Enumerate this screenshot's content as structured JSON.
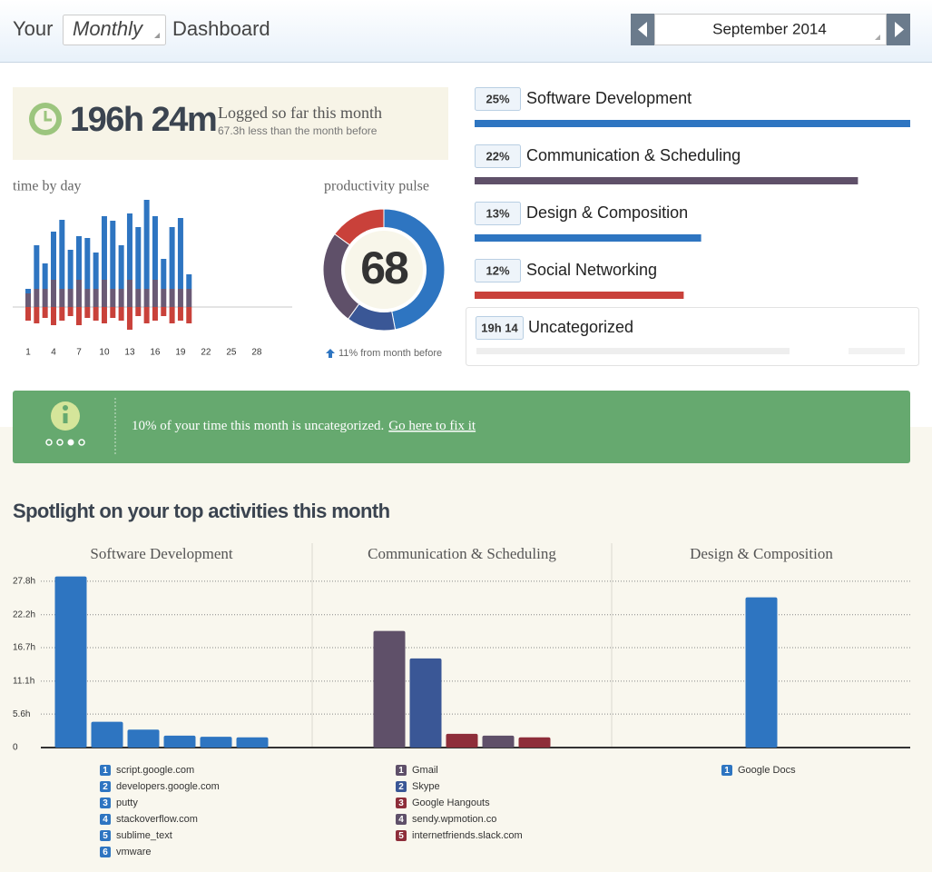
{
  "header": {
    "prefix": "Your",
    "period": "Monthly",
    "suffix": "Dashboard",
    "date": "September 2014"
  },
  "summary": {
    "total": "196h 24m",
    "caption": "Logged so far this month",
    "comparison": "67.3h less than the month before"
  },
  "time_by_day": {
    "type": "bar",
    "title": "time by day",
    "stacked": true,
    "categories": [
      1,
      null,
      null,
      4,
      null,
      null,
      7,
      null,
      null,
      10,
      null,
      null,
      13,
      null,
      null,
      16,
      null,
      null,
      19,
      null,
      null,
      22,
      null,
      null,
      25,
      null,
      null,
      28,
      null,
      null
    ],
    "series": [
      {
        "color": "#6a5a75",
        "values": [
          1.5,
          2,
          2,
          3,
          2,
          2,
          3,
          2,
          2,
          3,
          2,
          2,
          3,
          2,
          2,
          3,
          2,
          2,
          2,
          2,
          null,
          null,
          null,
          null,
          null,
          null,
          null,
          null,
          null,
          null
        ]
      },
      {
        "color": "#2e75c1",
        "values": [
          0.5,
          4.8,
          2.8,
          5.3,
          7.6,
          4.3,
          4.8,
          5.6,
          4,
          7,
          7.5,
          4.8,
          7.3,
          6.8,
          9.8,
          7,
          3.3,
          6.8,
          7.8,
          1.6,
          null,
          null,
          null,
          null,
          null,
          null,
          null,
          null,
          null,
          null
        ]
      },
      {
        "color": "#c9413a",
        "values": [
          -1.5,
          -1.8,
          -1.2,
          -2,
          -1.5,
          -1,
          -2,
          -1.2,
          -1.5,
          -1.8,
          -1.2,
          -1.5,
          -2.5,
          -1,
          -1.8,
          -1.5,
          -1,
          -1.8,
          -1.5,
          -1.8,
          null,
          null,
          null,
          null,
          null,
          null,
          null,
          null,
          null,
          null
        ]
      }
    ]
  },
  "productivity_pulse": {
    "type": "pie",
    "title": "productivity pulse",
    "donut": true,
    "values": [
      47,
      13,
      25,
      15
    ],
    "colors": [
      "#2e75c1",
      "#3a5796",
      "#5f5069",
      "#c9413a"
    ],
    "score": 68,
    "change": "11% from month before"
  },
  "categories": [
    {
      "name": "Software Development",
      "value": 25,
      "value_label": "25%",
      "color": "#2e75c1"
    },
    {
      "name": "Communication & Scheduling",
      "value": 22,
      "value_label": "22%",
      "color": "#5f5069"
    },
    {
      "name": "Design & Composition",
      "value": 13,
      "value_label": "13%",
      "color": "#2e75c1"
    },
    {
      "name": "Social Networking",
      "value": 12,
      "value_label": "12%",
      "color": "#c9413a"
    }
  ],
  "uncategorized": {
    "time": "19h 14",
    "name": "Uncategorized"
  },
  "banner": {
    "message": "10% of your time this month is uncategorized.",
    "link": "Go here to fix it"
  },
  "spotlight": {
    "title": "Spotlight on your top activities this month",
    "ylim": [
      0,
      29
    ],
    "yticks": [
      0,
      {
        "value": 5.6,
        "label": "5.6h"
      },
      {
        "value": 11.1,
        "label": "11.1h"
      },
      {
        "value": 16.7,
        "label": "16.7h"
      },
      {
        "value": 22.2,
        "label": "22.2h"
      },
      {
        "value": 27.8,
        "label": "27.8h"
      }
    ],
    "grid": true,
    "panels": [
      {
        "type": "bar",
        "title": "Software Development",
        "ranks": [
          1,
          2,
          3,
          4,
          5,
          6
        ],
        "categories": [
          "script.google.com",
          "developers.google.com",
          "putty",
          "stackoverflow.com",
          "sublime_text",
          "vmware"
        ],
        "values": [
          28.6,
          4.3,
          3.0,
          2.0,
          1.8,
          1.7
        ],
        "colors": [
          "#2e75c1",
          "#2e75c1",
          "#2e75c1",
          "#2e75c1",
          "#2e75c1",
          "#2e75c1"
        ]
      },
      {
        "type": "bar",
        "title": "Communication & Scheduling",
        "ranks": [
          1,
          2,
          3,
          4,
          5
        ],
        "categories": [
          "Gmail",
          "Skype",
          "Google Hangouts",
          "sendy.wpmotion.co",
          "internetfriends.slack.com"
        ],
        "values": [
          19.5,
          14.9,
          2.3,
          2.0,
          1.7
        ],
        "colors": [
          "#5f5069",
          "#3a5796",
          "#8e2e3a",
          "#5f5069",
          "#8e2e3a"
        ]
      },
      {
        "type": "bar",
        "title": "Design & Composition",
        "ranks": [
          1
        ],
        "categories": [
          "Google Docs"
        ],
        "values": [
          25.1
        ],
        "colors": [
          "#2e75c1"
        ]
      }
    ]
  }
}
